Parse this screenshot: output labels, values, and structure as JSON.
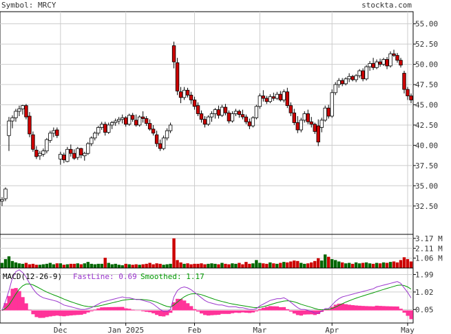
{
  "header": {
    "symbol_label": "Symbol: MRCY",
    "site": "stockta.com"
  },
  "colors": {
    "up_fill": "#ffffff",
    "down_fill": "#cc0000",
    "candle_stroke": "#000000",
    "vol_up": "#006600",
    "vol_down": "#cc0000",
    "macd_fast": "#9933cc",
    "macd_smooth": "#009900",
    "macd_hist": "#ff3399",
    "grid": "#cccccc"
  },
  "chart_data": [
    {
      "type": "candlestick",
      "title": "Symbol: MRCY",
      "ylim": [
        29.0,
        56.5
      ],
      "y_ticks": [
        "55.00",
        "52.50",
        "50.00",
        "47.50",
        "45.00",
        "42.50",
        "40.00",
        "37.50",
        "35.00",
        "32.50"
      ],
      "x_month_labels": [
        {
          "label": "Dec",
          "index": 17
        },
        {
          "label": "Jan 2025",
          "index": 36
        },
        {
          "label": "Feb",
          "index": 56
        },
        {
          "label": "Mar",
          "index": 75
        },
        {
          "label": "Apr",
          "index": 96
        },
        {
          "label": "May",
          "index": 118
        }
      ],
      "ohlc": [
        [
          33.1,
          33.6,
          32.5,
          33.3
        ],
        [
          33.4,
          34.8,
          33.1,
          34.6
        ],
        [
          41.2,
          43.5,
          39.3,
          43.0
        ],
        [
          43.0,
          43.7,
          42.1,
          43.4
        ],
        [
          43.4,
          44.5,
          42.9,
          44.2
        ],
        [
          44.2,
          44.9,
          43.6,
          44.5
        ],
        [
          44.5,
          45.0,
          43.8,
          44.9
        ],
        [
          44.9,
          45.1,
          43.2,
          43.5
        ],
        [
          43.6,
          44.1,
          41.0,
          41.4
        ],
        [
          41.3,
          41.7,
          39.2,
          39.5
        ],
        [
          39.4,
          39.9,
          38.3,
          38.6
        ],
        [
          38.7,
          39.3,
          38.2,
          39.0
        ],
        [
          38.9,
          39.6,
          38.6,
          39.3
        ],
        [
          39.3,
          40.9,
          39.0,
          40.7
        ],
        [
          40.6,
          41.8,
          40.3,
          41.5
        ],
        [
          41.5,
          42.2,
          41.0,
          41.8
        ],
        [
          41.9,
          42.2,
          40.9,
          41.2
        ],
        [
          38.3,
          39.2,
          37.6,
          38.9
        ],
        [
          38.8,
          39.1,
          37.8,
          38.2
        ],
        [
          38.0,
          39.8,
          37.9,
          39.5
        ],
        [
          39.5,
          40.1,
          38.6,
          39.0
        ],
        [
          39.0,
          39.5,
          38.2,
          38.4
        ],
        [
          38.5,
          39.8,
          38.2,
          39.6
        ],
        [
          39.6,
          39.7,
          38.4,
          38.8
        ],
        [
          38.7,
          39.2,
          38.1,
          39.0
        ],
        [
          39.0,
          40.4,
          38.8,
          40.2
        ],
        [
          40.2,
          41.1,
          39.9,
          40.9
        ],
        [
          40.9,
          41.7,
          40.6,
          41.5
        ],
        [
          41.5,
          42.4,
          41.2,
          42.2
        ],
        [
          42.2,
          42.9,
          41.9,
          42.6
        ],
        [
          42.6,
          42.9,
          41.2,
          41.6
        ],
        [
          41.6,
          42.8,
          41.4,
          42.5
        ],
        [
          42.5,
          43.0,
          42.0,
          42.8
        ],
        [
          42.8,
          43.3,
          42.4,
          43.0
        ],
        [
          43.0,
          43.5,
          42.6,
          43.2
        ],
        [
          43.2,
          43.8,
          42.7,
          43.4
        ],
        [
          43.4,
          43.6,
          42.3,
          42.6
        ],
        [
          42.6,
          43.9,
          42.4,
          43.7
        ],
        [
          43.7,
          44.0,
          42.9,
          43.2
        ],
        [
          43.1,
          43.8,
          42.3,
          42.5
        ],
        [
          42.5,
          43.7,
          42.3,
          43.5
        ],
        [
          43.5,
          44.2,
          42.8,
          43.3
        ],
        [
          43.3,
          43.6,
          42.4,
          42.7
        ],
        [
          42.7,
          43.2,
          41.8,
          42.0
        ],
        [
          42.0,
          42.5,
          41.2,
          41.5
        ],
        [
          41.3,
          41.8,
          39.8,
          40.2
        ],
        [
          40.2,
          40.7,
          39.3,
          39.6
        ],
        [
          39.6,
          41.2,
          39.4,
          40.9
        ],
        [
          40.9,
          42.1,
          40.6,
          41.8
        ],
        [
          41.8,
          42.8,
          41.5,
          42.5
        ],
        [
          52.3,
          52.8,
          49.5,
          50.3
        ],
        [
          50.2,
          50.8,
          46.2,
          46.7
        ],
        [
          46.6,
          47.2,
          45.2,
          45.9
        ],
        [
          45.9,
          47.2,
          45.6,
          46.8
        ],
        [
          46.8,
          47.1,
          45.9,
          46.2
        ],
        [
          46.2,
          46.6,
          45.1,
          45.6
        ],
        [
          45.6,
          46.0,
          44.4,
          44.8
        ],
        [
          44.9,
          45.3,
          43.6,
          43.9
        ],
        [
          43.9,
          44.3,
          42.8,
          43.2
        ],
        [
          43.2,
          43.6,
          42.2,
          42.6
        ],
        [
          42.6,
          43.7,
          42.4,
          43.5
        ],
        [
          43.5,
          44.2,
          42.9,
          43.9
        ],
        [
          43.9,
          44.6,
          43.3,
          44.4
        ],
        [
          44.4,
          44.9,
          43.3,
          43.7
        ],
        [
          43.7,
          45.0,
          43.5,
          44.7
        ],
        [
          44.7,
          45.1,
          43.7,
          44.0
        ],
        [
          44.0,
          44.3,
          42.7,
          43.0
        ],
        [
          43.0,
          44.2,
          42.8,
          43.9
        ],
        [
          43.9,
          44.5,
          43.6,
          44.2
        ],
        [
          44.2,
          44.4,
          43.4,
          43.8
        ],
        [
          43.8,
          44.4,
          43.2,
          43.5
        ],
        [
          43.5,
          43.8,
          42.6,
          42.9
        ],
        [
          42.9,
          43.3,
          42.0,
          42.4
        ],
        [
          42.4,
          43.6,
          42.2,
          43.4
        ],
        [
          43.4,
          45.0,
          43.2,
          44.8
        ],
        [
          44.8,
          46.4,
          44.5,
          46.1
        ],
        [
          46.1,
          46.8,
          45.4,
          45.8
        ],
        [
          45.8,
          46.1,
          45.1,
          45.4
        ],
        [
          45.4,
          46.3,
          45.2,
          46.0
        ],
        [
          46.0,
          46.5,
          45.5,
          45.8
        ],
        [
          45.8,
          46.6,
          45.6,
          46.3
        ],
        [
          46.3,
          46.7,
          45.4,
          45.6
        ],
        [
          45.6,
          46.9,
          45.3,
          46.6
        ],
        [
          46.6,
          47.1,
          44.6,
          44.9
        ],
        [
          44.9,
          45.3,
          43.6,
          44.0
        ],
        [
          44.0,
          44.5,
          42.5,
          42.8
        ],
        [
          42.8,
          43.6,
          41.5,
          41.9
        ],
        [
          41.9,
          43.4,
          41.6,
          43.1
        ],
        [
          43.1,
          44.2,
          42.8,
          43.9
        ],
        [
          43.9,
          44.4,
          42.6,
          42.9
        ],
        [
          42.9,
          43.5,
          42.2,
          42.6
        ],
        [
          42.6,
          42.8,
          41.4,
          41.7
        ],
        [
          42.4,
          43.2,
          39.9,
          40.4
        ],
        [
          42.2,
          43.4,
          41.6,
          43.1
        ],
        [
          43.1,
          44.9,
          42.9,
          44.6
        ],
        [
          44.6,
          45.0,
          43.3,
          43.6
        ],
        [
          43.6,
          46.9,
          43.4,
          46.5
        ],
        [
          46.5,
          47.8,
          46.2,
          47.5
        ],
        [
          47.5,
          48.3,
          47.1,
          48.0
        ],
        [
          48.0,
          48.3,
          47.3,
          47.6
        ],
        [
          47.6,
          48.4,
          47.4,
          48.2
        ],
        [
          48.2,
          48.9,
          47.8,
          48.5
        ],
        [
          48.5,
          48.7,
          47.9,
          48.1
        ],
        [
          48.1,
          48.8,
          47.8,
          48.6
        ],
        [
          48.6,
          49.4,
          48.3,
          49.2
        ],
        [
          49.2,
          49.5,
          47.9,
          48.2
        ],
        [
          48.2,
          49.9,
          48.0,
          49.7
        ],
        [
          49.7,
          50.4,
          49.2,
          50.1
        ],
        [
          50.1,
          50.8,
          49.3,
          49.6
        ],
        [
          49.6,
          50.6,
          49.4,
          50.3
        ],
        [
          50.3,
          50.7,
          49.7,
          50.0
        ],
        [
          50.0,
          50.8,
          49.8,
          50.6
        ],
        [
          50.6,
          50.9,
          49.4,
          49.8
        ],
        [
          49.8,
          51.6,
          49.6,
          51.3
        ],
        [
          51.3,
          51.8,
          50.9,
          51.1
        ],
        [
          51.1,
          51.4,
          50.2,
          50.5
        ],
        [
          50.5,
          50.8,
          49.6,
          49.9
        ],
        [
          48.9,
          49.2,
          46.4,
          46.9
        ],
        [
          46.9,
          47.2,
          45.6,
          46.1
        ],
        [
          46.1,
          46.4,
          45.2,
          45.6
        ]
      ]
    },
    {
      "type": "bar",
      "title": "Volume",
      "y_ticks": [
        "3.17 M",
        "2.11 M",
        "1.06 M"
      ],
      "ylim": [
        0,
        3.6
      ],
      "values_m": [
        0.55,
        0.95,
        1.25,
        0.75,
        0.6,
        0.5,
        0.45,
        0.55,
        0.4,
        0.45,
        0.35,
        0.35,
        0.4,
        0.45,
        0.55,
        0.4,
        0.5,
        0.5,
        0.35,
        0.4,
        0.45,
        0.45,
        0.5,
        0.4,
        0.5,
        0.65,
        0.45,
        0.4,
        0.45,
        0.45,
        1.1,
        0.55,
        0.4,
        0.45,
        0.35,
        0.3,
        0.45,
        0.4,
        0.35,
        0.4,
        0.35,
        0.4,
        0.45,
        0.55,
        0.4,
        0.5,
        0.45,
        0.35,
        0.4,
        0.45,
        3.17,
        0.85,
        0.6,
        0.45,
        0.5,
        0.4,
        0.45,
        0.45,
        0.5,
        0.4,
        0.45,
        0.5,
        0.45,
        0.4,
        0.55,
        0.45,
        0.4,
        0.5,
        0.45,
        0.55,
        0.4,
        0.65,
        0.45,
        0.5,
        0.85,
        0.55,
        0.5,
        0.45,
        0.6,
        0.5,
        0.45,
        0.55,
        0.65,
        0.6,
        0.7,
        0.8,
        0.75,
        0.55,
        0.45,
        0.5,
        0.6,
        0.75,
        1.05,
        0.8,
        1.45,
        1.2,
        0.95,
        0.85,
        0.7,
        0.6,
        0.5,
        0.55,
        0.45,
        0.6,
        0.5,
        0.55,
        0.6,
        0.5,
        0.45,
        0.55,
        0.5,
        0.6,
        0.55,
        0.65,
        0.7,
        0.6,
        0.85,
        1.15,
        0.95,
        0.7
      ]
    },
    {
      "type": "line",
      "title": "MACD(12-26-9)",
      "fast_label": "FastLine: 0.69",
      "smooth_label": "Smoothed: 1.17",
      "y_ticks": [
        "1.99",
        "1.02",
        "0.05"
      ],
      "ylim": [
        -0.7,
        2.35
      ],
      "fast": [
        0.0,
        0.5,
        1.1,
        1.8,
        2.15,
        2.25,
        2.1,
        1.85,
        1.5,
        1.2,
        0.95,
        0.8,
        0.7,
        0.65,
        0.6,
        0.55,
        0.5,
        0.4,
        0.3,
        0.25,
        0.2,
        0.15,
        0.1,
        0.05,
        0.05,
        0.1,
        0.15,
        0.25,
        0.35,
        0.45,
        0.5,
        0.55,
        0.6,
        0.65,
        0.7,
        0.75,
        0.7,
        0.7,
        0.65,
        0.6,
        0.6,
        0.55,
        0.5,
        0.45,
        0.35,
        0.2,
        0.05,
        -0.05,
        -0.05,
        0.05,
        0.75,
        1.1,
        1.25,
        1.3,
        1.25,
        1.15,
        1.0,
        0.85,
        0.7,
        0.55,
        0.45,
        0.4,
        0.35,
        0.3,
        0.3,
        0.25,
        0.2,
        0.2,
        0.2,
        0.15,
        0.15,
        0.1,
        0.05,
        0.05,
        0.1,
        0.25,
        0.35,
        0.45,
        0.55,
        0.6,
        0.65,
        0.65,
        0.7,
        0.6,
        0.45,
        0.3,
        0.15,
        0.05,
        0.05,
        0.0,
        -0.05,
        -0.15,
        -0.15,
        -0.05,
        0.1,
        0.1,
        0.3,
        0.5,
        0.65,
        0.75,
        0.8,
        0.85,
        0.9,
        0.95,
        1.0,
        1.05,
        1.1,
        1.15,
        1.2,
        1.3,
        1.35,
        1.4,
        1.45,
        1.5,
        1.55,
        1.6,
        1.5,
        1.25,
        1.0,
        0.69
      ]
    }
  ]
}
